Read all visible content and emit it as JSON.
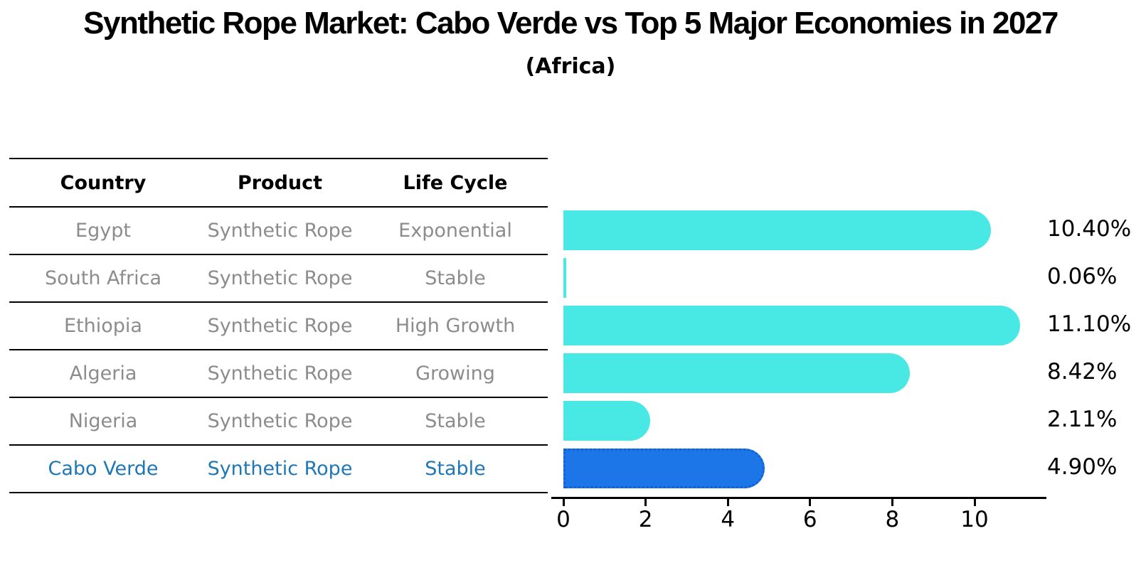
{
  "header": {
    "title": "Synthetic Rope Market: Cabo Verde vs Top 5 Major Economies in 2027",
    "subtitle": "(Africa)"
  },
  "table": {
    "headers": [
      "Country",
      "Product",
      "Life Cycle"
    ],
    "rows": [
      {
        "country": "Egypt",
        "product": "Synthetic Rope",
        "life_cycle": "Exponential",
        "highlight": false
      },
      {
        "country": "South Africa",
        "product": "Synthetic Rope",
        "life_cycle": "Stable",
        "highlight": false
      },
      {
        "country": "Ethiopia",
        "product": "Synthetic Rope",
        "life_cycle": "High Growth",
        "highlight": false
      },
      {
        "country": "Algeria",
        "product": "Synthetic Rope",
        "life_cycle": "Growing",
        "highlight": false
      },
      {
        "country": "Nigeria",
        "product": "Synthetic Rope",
        "life_cycle": "Stable",
        "highlight": false
      },
      {
        "country": "Cabo Verde",
        "product": "Synthetic Rope",
        "life_cycle": "Stable",
        "highlight": true
      }
    ]
  },
  "chart_data": {
    "type": "bar",
    "orientation": "horizontal",
    "title": "Synthetic Rope Market: Cabo Verde vs Top 5 Major Economies in 2027",
    "subtitle": "(Africa)",
    "categories": [
      "Egypt",
      "South Africa",
      "Ethiopia",
      "Algeria",
      "Nigeria",
      "Cabo Verde"
    ],
    "values": [
      10.4,
      0.06,
      11.1,
      8.42,
      2.11,
      4.9
    ],
    "value_labels": [
      "10.40%",
      "0.06%",
      "11.10%",
      "8.42%",
      "2.11%",
      "4.90%"
    ],
    "xticks": [
      0,
      2,
      4,
      6,
      8,
      10
    ],
    "xlim": [
      0,
      11.7
    ],
    "grid": false,
    "legend": "none",
    "highlight_index": 5
  },
  "colors": {
    "bar_color": "#48E8E4",
    "highlight_bar_color": "#1C76E8",
    "highlight_border_color": "#1160D8",
    "table_text": "#8C8C8C",
    "highlight_text": "#1f77b4",
    "axis_color": "#000000"
  }
}
